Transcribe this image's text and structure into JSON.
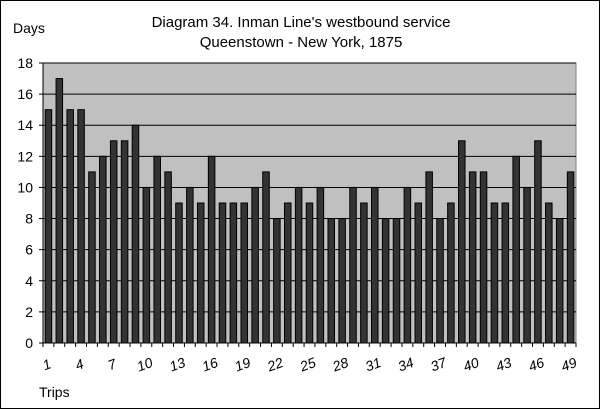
{
  "chart_data": {
    "type": "bar",
    "title": "Diagram 34. Inman Line's westbound service",
    "subtitle": "Queenstown - New York, 1875",
    "xlabel": "Trips",
    "ylabel": "Days",
    "ylim": [
      0,
      18
    ],
    "yticks": [
      0,
      2,
      4,
      6,
      8,
      10,
      12,
      14,
      16,
      18
    ],
    "grid": true,
    "legend": "none",
    "categories": [
      1,
      2,
      3,
      4,
      5,
      6,
      7,
      8,
      9,
      10,
      11,
      12,
      13,
      14,
      15,
      16,
      17,
      18,
      19,
      20,
      21,
      22,
      23,
      24,
      25,
      26,
      27,
      28,
      29,
      30,
      31,
      32,
      33,
      34,
      35,
      36,
      37,
      38,
      39,
      40,
      41,
      42,
      43,
      44,
      45,
      46,
      47,
      48,
      49
    ],
    "xtick_labels": [
      "1",
      "4",
      "7",
      "10",
      "13",
      "16",
      "19",
      "22",
      "25",
      "28",
      "31",
      "34",
      "37",
      "40",
      "43",
      "46",
      "49"
    ],
    "values": [
      15,
      17,
      15,
      15,
      11,
      12,
      13,
      13,
      14,
      10,
      12,
      11,
      9,
      10,
      9,
      12,
      9,
      9,
      9,
      10,
      11,
      8,
      9,
      10,
      9,
      10,
      8,
      8,
      10,
      9,
      10,
      8,
      8,
      10,
      9,
      11,
      8,
      9,
      13,
      11,
      11,
      9,
      9,
      12,
      10,
      13,
      9,
      8,
      11
    ],
    "colors": {
      "plot_background": "#c0c0c0",
      "bar_fill": "#333333",
      "bar_stroke": "#000000",
      "gridline": "#000000"
    }
  }
}
